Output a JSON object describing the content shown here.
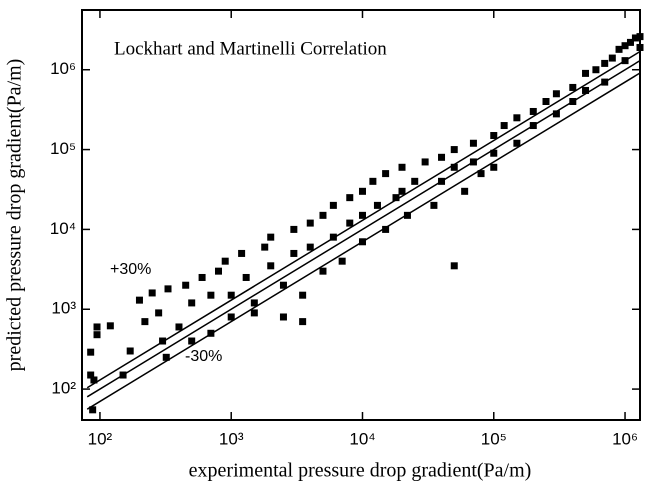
{
  "chart_data": {
    "type": "scatter",
    "title": "Lockhart and Martinelli Correlation",
    "x_label": "experimental pressure drop gradient(Pa/m)",
    "y_label": "predicted pressure drop gradient(Pa/m)",
    "annotations": [
      "+30%",
      "-30%"
    ],
    "xscale": "log",
    "yscale": "log",
    "xlim": [
      73,
      1300000
    ],
    "ylim": [
      41,
      5600000
    ],
    "xticks": [
      {
        "value": 100,
        "label": "10²"
      },
      {
        "value": 1000,
        "label": "10³"
      },
      {
        "value": 10000,
        "label": "10⁴"
      },
      {
        "value": 100000,
        "label": "10⁵"
      },
      {
        "value": 1000000,
        "label": "10⁶"
      }
    ],
    "yticks": [
      {
        "value": 100,
        "label": "10²"
      },
      {
        "value": 1000,
        "label": "10³"
      },
      {
        "value": 10000,
        "label": "10⁴"
      },
      {
        "value": 100000,
        "label": "10⁵"
      },
      {
        "value": 1000000,
        "label": "10⁶"
      }
    ],
    "color": "#000000",
    "x": [
      85,
      85,
      88,
      90,
      95,
      95,
      120,
      150,
      170,
      200,
      220,
      250,
      280,
      300,
      320,
      330,
      400,
      450,
      500,
      500,
      600,
      700,
      700,
      800,
      900,
      1000,
      1000,
      1200,
      1300,
      1500,
      1500,
      1800,
      2000,
      2000,
      2500,
      2500,
      3000,
      3000,
      3500,
      3500,
      4000,
      4000,
      5000,
      5000,
      6000,
      6000,
      7000,
      8000,
      8000,
      10000,
      10000,
      10000,
      12000,
      13000,
      15000,
      15000,
      18000,
      20000,
      20000,
      22000,
      25000,
      30000,
      50000,
      35000,
      40000,
      40000,
      50000,
      50000,
      60000,
      70000,
      70000,
      80000,
      100000,
      100000,
      100000,
      120000,
      150000,
      150000,
      200000,
      200000,
      250000,
      300000,
      300000,
      400000,
      400000,
      500000,
      500000,
      600000,
      700000,
      700000,
      800000,
      900000,
      1000000,
      1000000,
      1100000,
      1200000,
      1300000,
      1300000
    ],
    "values": [
      290,
      150,
      55,
      130,
      600,
      480,
      620,
      150,
      300,
      1300,
      700,
      1600,
      900,
      400,
      250,
      1800,
      600,
      2000,
      1200,
      400,
      2500,
      1500,
      500,
      3000,
      4000,
      1500,
      800,
      5000,
      2500,
      1200,
      900,
      6000,
      3500,
      8000,
      2000,
      800,
      10000,
      5000,
      1500,
      700,
      12000,
      6000,
      3000,
      15000,
      20000,
      8000,
      4000,
      25000,
      12000,
      30000,
      15000,
      7000,
      40000,
      20000,
      10000,
      50000,
      25000,
      60000,
      30000,
      15000,
      40000,
      70000,
      3500,
      20000,
      80000,
      40000,
      100000,
      60000,
      30000,
      120000,
      70000,
      50000,
      150000,
      90000,
      60000,
      200000,
      120000,
      250000,
      300000,
      200000,
      400000,
      500000,
      280000,
      600000,
      400000,
      900000,
      550000,
      1000000,
      1200000,
      700000,
      1400000,
      1800000,
      2000000,
      1300000,
      2200000,
      2500000,
      2600000,
      1900000
    ],
    "lines": [
      {
        "x": [
          80,
          1300000
        ],
        "values": [
          104,
          1690000
        ]
      },
      {
        "x": [
          80,
          1300000
        ],
        "values": [
          80,
          1300000
        ]
      },
      {
        "x": [
          80,
          1300000
        ],
        "values": [
          56,
          910000
        ]
      }
    ]
  }
}
